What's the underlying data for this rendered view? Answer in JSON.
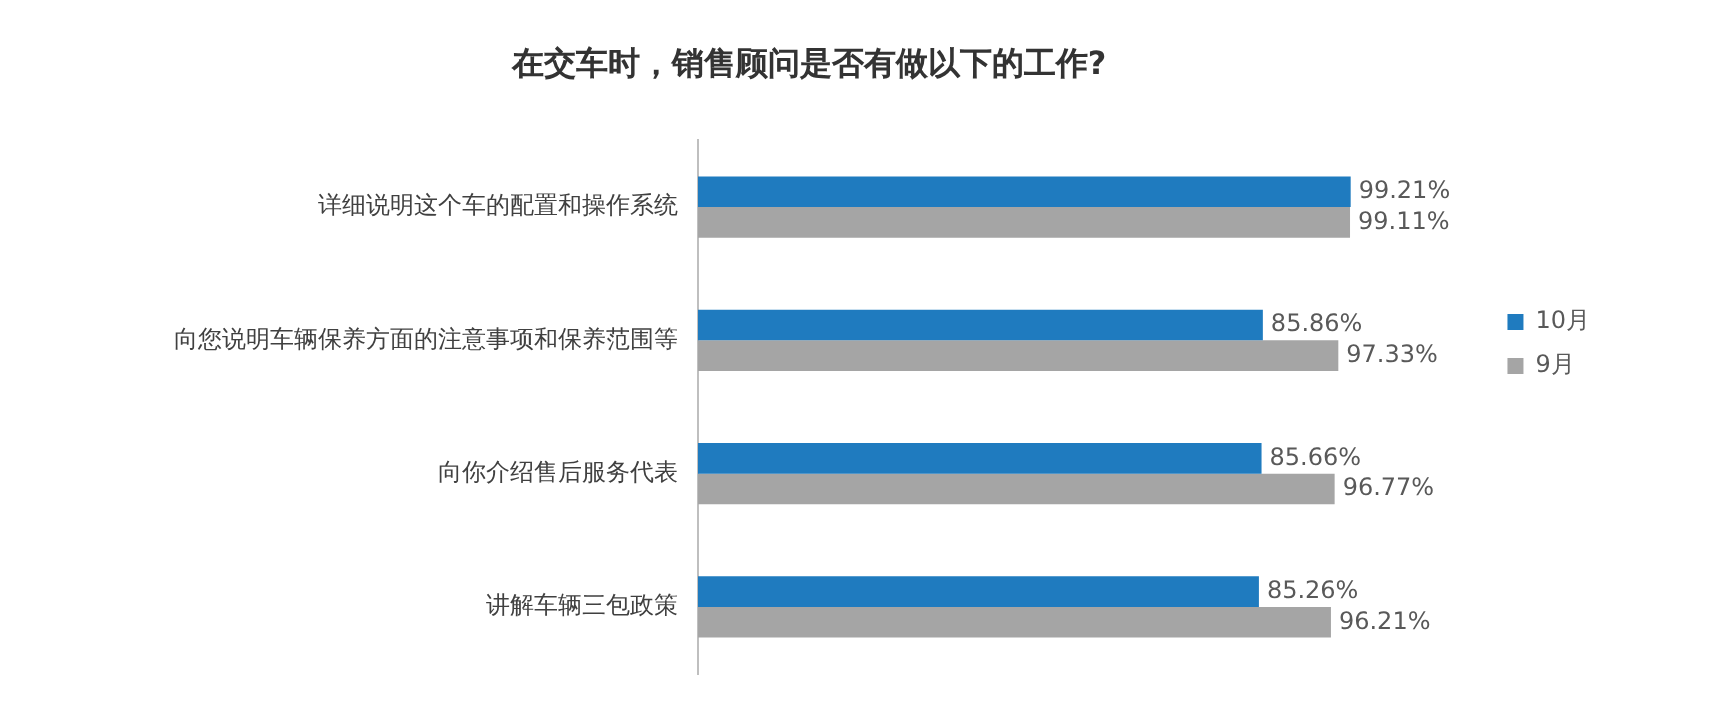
{
  "chart_data": {
    "type": "bar",
    "orientation": "horizontal",
    "title": "在交车时，销售顾问是否有做以下的工作?",
    "categories": [
      "详细说明这个车的配置和操作系统",
      "向您说明车辆保养方面的注意事项和保养范围等",
      "向你介绍售后服务代表",
      "讲解车辆三包政策"
    ],
    "series": [
      {
        "name": "10月",
        "color": "#1f7bbf",
        "values": [
          99.21,
          85.86,
          85.66,
          85.26
        ],
        "value_labels": [
          "99.21%",
          "85.86%",
          "85.66%",
          "85.26%"
        ]
      },
      {
        "name": "9月",
        "color": "#a5a5a5",
        "values": [
          99.11,
          97.33,
          96.77,
          96.21
        ],
        "value_labels": [
          "99.11%",
          "97.33%",
          "96.77%",
          "96.21%"
        ]
      }
    ],
    "legend": "right",
    "grid": false,
    "tick_labels": "y"
  }
}
